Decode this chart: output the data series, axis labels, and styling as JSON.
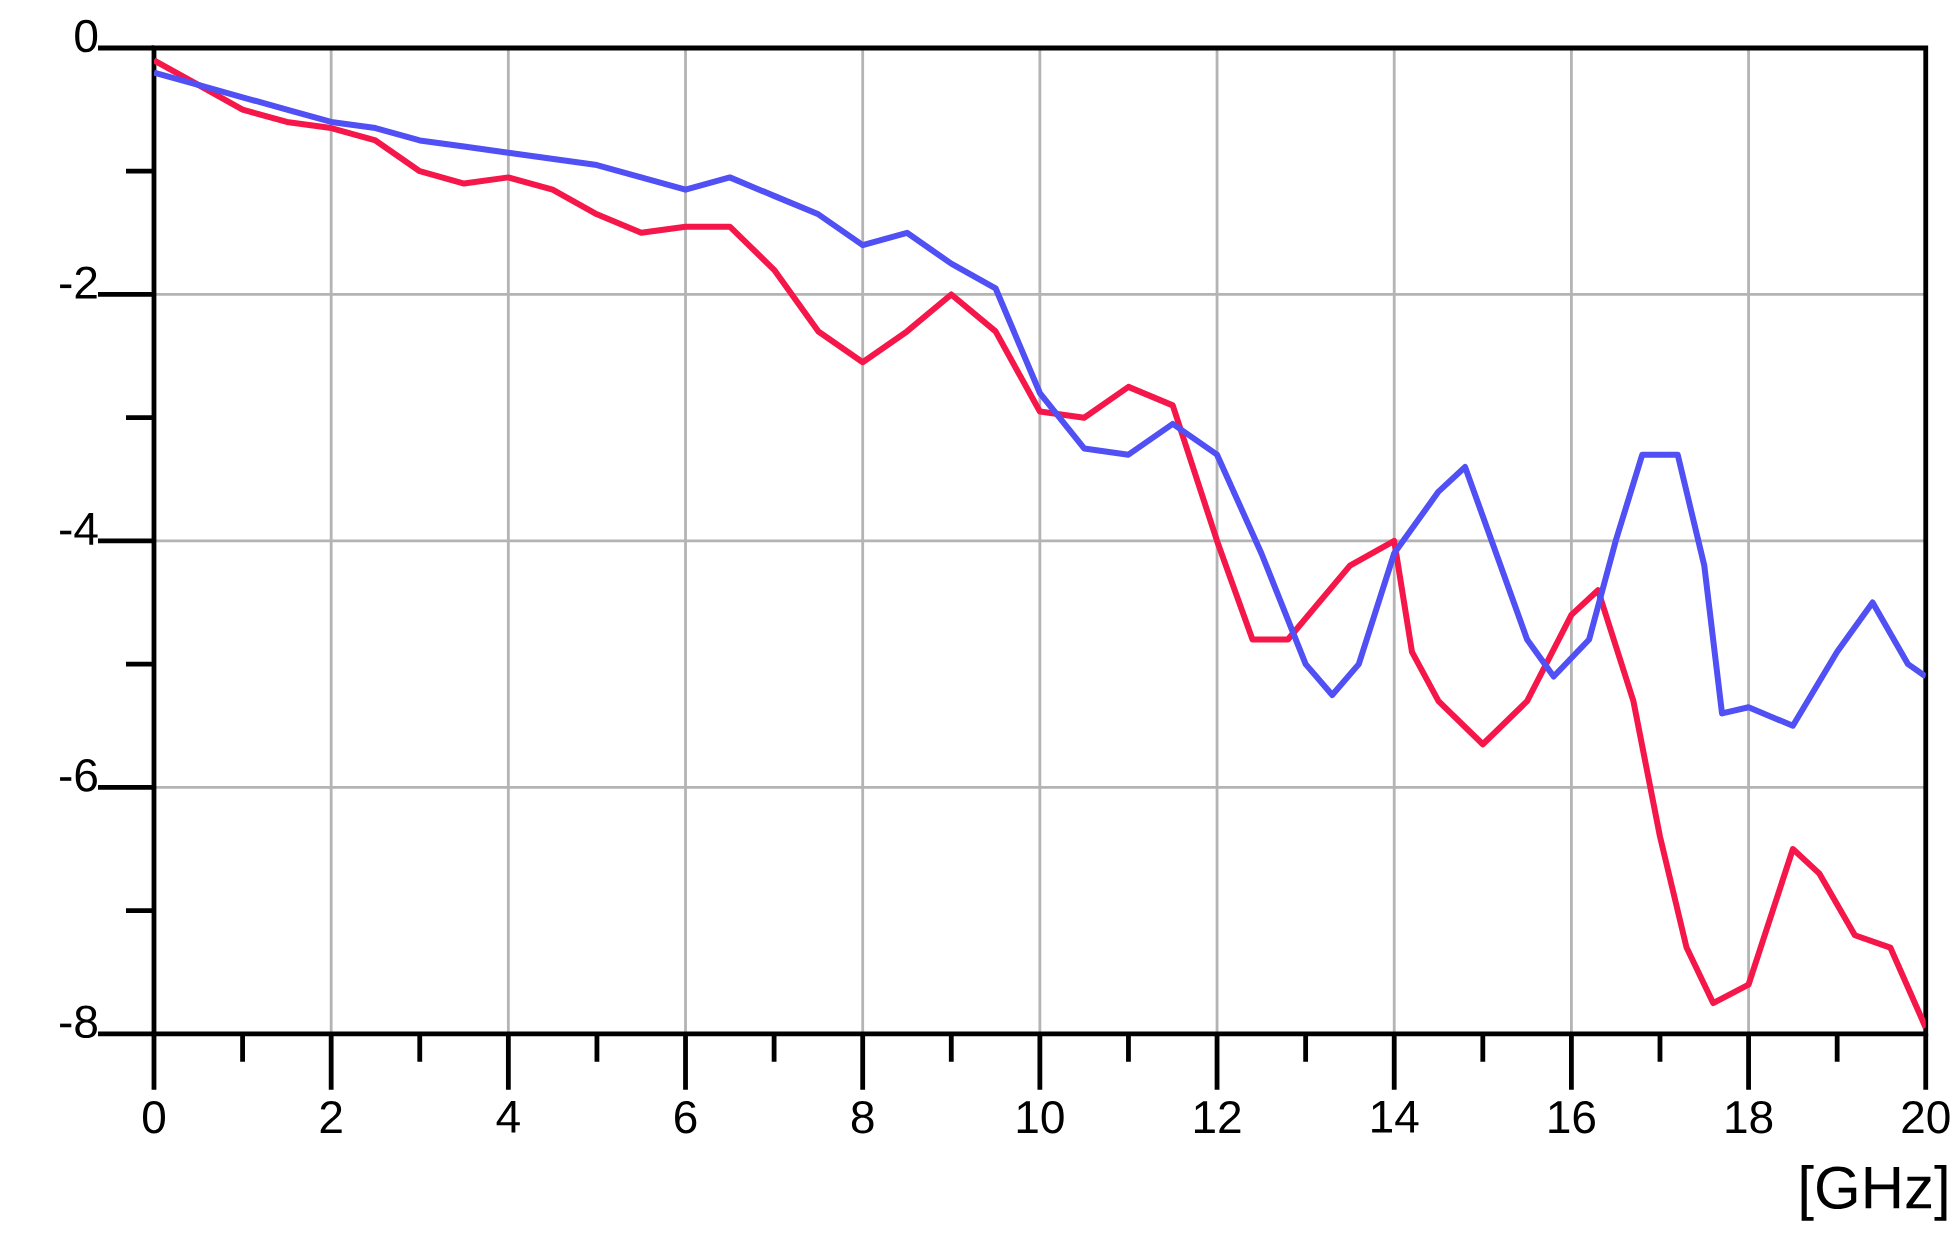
{
  "chart_data": {
    "type": "line",
    "xlabel": "[GHz]",
    "xlim": [
      0,
      20
    ],
    "ylim": [
      -8,
      0
    ],
    "xticks": [
      0,
      2,
      4,
      6,
      8,
      10,
      12,
      14,
      16,
      18,
      20
    ],
    "yticks": [
      -8,
      -6,
      -4,
      -2,
      0
    ],
    "grid": true,
    "marker": "none",
    "line_style": "solid",
    "series": [
      {
        "color": "#f5174a",
        "x": [
          0,
          0.5,
          1,
          1.5,
          2,
          2.5,
          3,
          3.5,
          4,
          4.5,
          5,
          5.5,
          6,
          6.5,
          7,
          7.5,
          8,
          8.5,
          9,
          9.5,
          10,
          10.5,
          11,
          11.5,
          12,
          12.4,
          12.8,
          13.5,
          14,
          14.2,
          14.5,
          15,
          15.5,
          16,
          16.3,
          16.7,
          17,
          17.3,
          17.6,
          18,
          18.5,
          18.8,
          19.2,
          19.6,
          20
        ],
        "values": [
          -0.1,
          -0.3,
          -0.5,
          -0.6,
          -0.65,
          -0.75,
          -1.0,
          -1.1,
          -1.05,
          -1.15,
          -1.35,
          -1.5,
          -1.45,
          -1.45,
          -1.8,
          -2.3,
          -2.55,
          -2.3,
          -2.0,
          -2.3,
          -2.95,
          -3.0,
          -2.75,
          -2.9,
          -4.0,
          -4.8,
          -4.8,
          -4.2,
          -4.0,
          -4.9,
          -5.3,
          -5.65,
          -5.3,
          -4.6,
          -4.4,
          -5.3,
          -6.4,
          -7.3,
          -7.75,
          -7.6,
          -6.5,
          -6.7,
          -7.2,
          -7.3,
          -7.95
        ]
      },
      {
        "color": "#5050f5",
        "x": [
          0,
          0.5,
          1,
          1.5,
          2,
          2.5,
          3,
          3.5,
          4,
          4.5,
          5,
          5.5,
          6,
          6.5,
          7,
          7.5,
          8,
          8.5,
          9,
          9.5,
          10,
          10.5,
          11,
          11.5,
          12,
          12.5,
          13,
          13.3,
          13.6,
          14,
          14.5,
          14.8,
          15,
          15.5,
          15.8,
          16.2,
          16.5,
          16.8,
          17.2,
          17.5,
          17.7,
          18,
          18.5,
          19,
          19.4,
          19.8,
          20
        ],
        "values": [
          -0.2,
          -0.3,
          -0.4,
          -0.5,
          -0.6,
          -0.65,
          -0.75,
          -0.8,
          -0.85,
          -0.9,
          -0.95,
          -1.05,
          -1.15,
          -1.05,
          -1.2,
          -1.35,
          -1.6,
          -1.5,
          -1.75,
          -1.95,
          -2.8,
          -3.25,
          -3.3,
          -3.05,
          -3.3,
          -4.1,
          -5.0,
          -5.25,
          -5.0,
          -4.1,
          -3.6,
          -3.4,
          -3.8,
          -4.8,
          -5.1,
          -4.8,
          -4.0,
          -3.3,
          -3.3,
          -4.2,
          -5.4,
          -5.35,
          -5.5,
          -4.9,
          -4.5,
          -5.0,
          -5.1
        ]
      }
    ]
  }
}
